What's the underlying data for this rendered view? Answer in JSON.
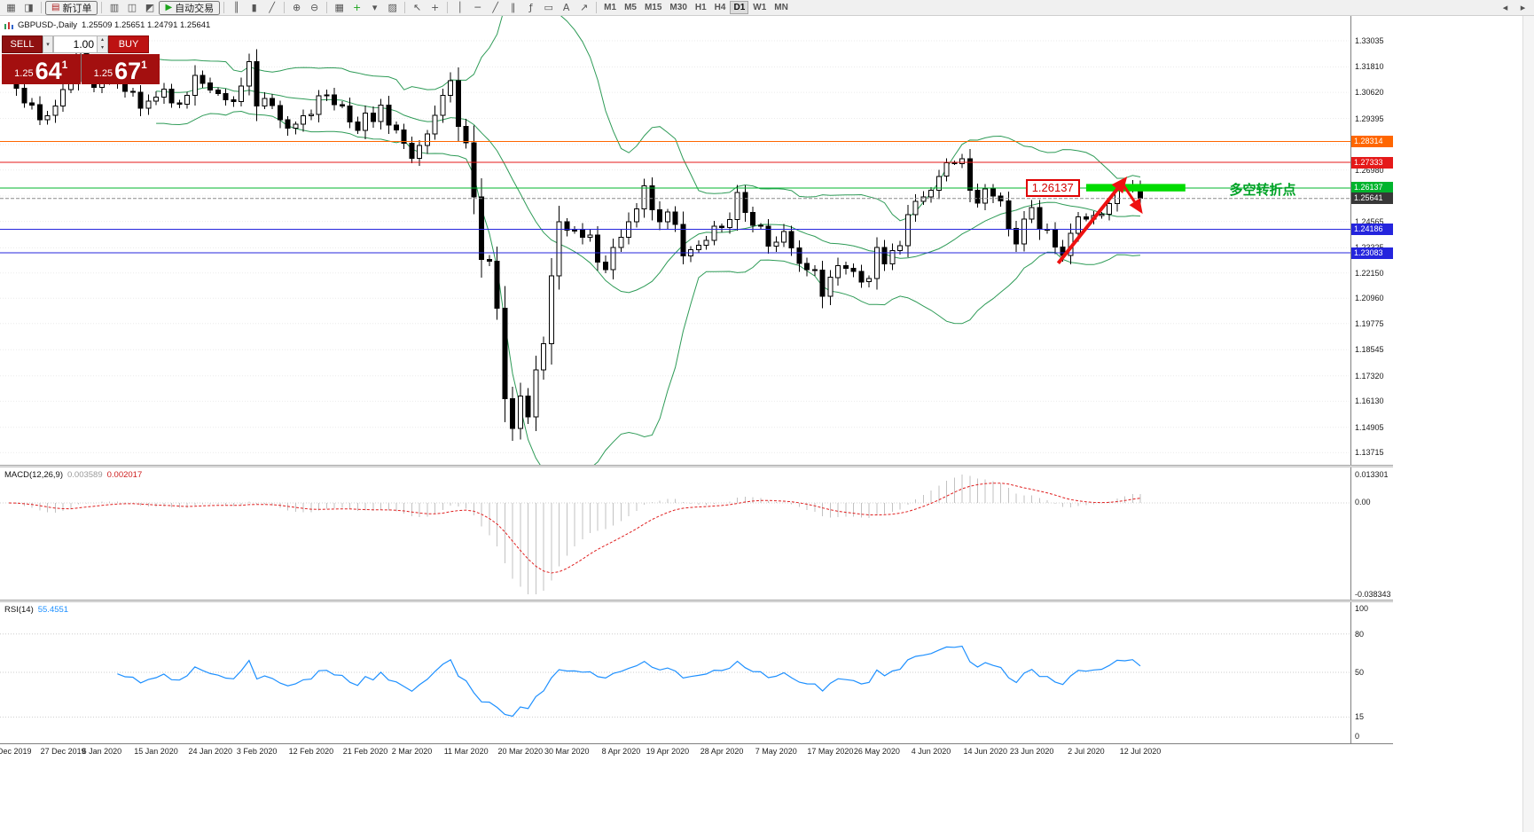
{
  "toolbar": {
    "items": [
      {
        "t": "icon",
        "name": "new-chart-icon",
        "glyph": "▦"
      },
      {
        "t": "icon",
        "name": "chart-profiles-icon",
        "glyph": "◨"
      },
      {
        "t": "sep"
      },
      {
        "t": "btn",
        "name": "new-order-button",
        "glyph": "▤",
        "color": "#b02020",
        "label": "新订单"
      },
      {
        "t": "sep"
      },
      {
        "t": "icon",
        "name": "market-watch-icon",
        "glyph": "▥"
      },
      {
        "t": "icon",
        "name": "data-window-icon",
        "glyph": "◫"
      },
      {
        "t": "icon",
        "name": "terminal-icon",
        "glyph": "◩"
      },
      {
        "t": "btn",
        "name": "auto-trading-button",
        "glyph": "▶",
        "color": "#1ca41c",
        "label": "自动交易"
      },
      {
        "t": "sep"
      },
      {
        "t": "icon",
        "name": "bar-chart-icon",
        "glyph": "║"
      },
      {
        "t": "icon",
        "name": "candlestick-chart-icon",
        "glyph": "▮"
      },
      {
        "t": "icon",
        "name": "line-chart-icon",
        "glyph": "╱"
      },
      {
        "t": "sep"
      },
      {
        "t": "icon",
        "name": "zoom-in-icon",
        "glyph": "⊕"
      },
      {
        "t": "icon",
        "name": "zoom-out-icon",
        "glyph": "⊖"
      },
      {
        "t": "sep"
      },
      {
        "t": "icon",
        "name": "tile-windows-icon",
        "glyph": "▦"
      },
      {
        "t": "icon",
        "name": "indicators-icon",
        "glyph": "+",
        "color": "#1ca41c"
      },
      {
        "t": "icon",
        "name": "periods-icon",
        "glyph": "▾"
      },
      {
        "t": "icon",
        "name": "templates-icon",
        "glyph": "▨"
      },
      {
        "t": "sep"
      },
      {
        "t": "icon",
        "name": "cursor-icon",
        "glyph": "↖"
      },
      {
        "t": "icon",
        "name": "crosshair-icon",
        "glyph": "+"
      },
      {
        "t": "sep"
      },
      {
        "t": "icon",
        "name": "vertical-line-icon",
        "glyph": "│"
      },
      {
        "t": "icon",
        "name": "horizontal-line-icon",
        "glyph": "─"
      },
      {
        "t": "icon",
        "name": "trendline-icon",
        "glyph": "╱"
      },
      {
        "t": "icon",
        "name": "equidistant-channel-icon",
        "glyph": "∥"
      },
      {
        "t": "icon",
        "name": "fibonacci-icon",
        "glyph": "ƒ"
      },
      {
        "t": "icon",
        "name": "shapes-icon",
        "glyph": "▭"
      },
      {
        "t": "icon",
        "name": "text-label-icon",
        "glyph": "A"
      },
      {
        "t": "icon",
        "name": "arrow-objects-icon",
        "glyph": "↗"
      },
      {
        "t": "sep"
      },
      {
        "t": "tf",
        "label": "M1"
      },
      {
        "t": "tf",
        "label": "M5"
      },
      {
        "t": "tf",
        "label": "M15"
      },
      {
        "t": "tf",
        "label": "M30"
      },
      {
        "t": "tf",
        "label": "H1"
      },
      {
        "t": "tf",
        "label": "H4"
      },
      {
        "t": "tf",
        "label": "D1",
        "active": true
      },
      {
        "t": "tf",
        "label": "W1"
      },
      {
        "t": "tf",
        "label": "MN"
      }
    ],
    "right_items": [
      {
        "name": "scroll-left-icon",
        "glyph": "◂"
      },
      {
        "name": "scroll-right-icon",
        "glyph": "▸"
      }
    ]
  },
  "glyphs": {
    "caret_down": "▾",
    "caret_up": "▴"
  },
  "one_click": {
    "sell_label": "SELL",
    "buy_label": "BUY",
    "volume": "1.00",
    "bid_small": "1.25",
    "bid_big": "64",
    "bid_sup": "1",
    "ask_small": "1.25",
    "ask_big": "67",
    "ask_sup": "1"
  },
  "chart": {
    "symbol_label": "GBPUSD-,Daily",
    "ohlc_text": "1.25509 1.25651 1.24791 1.25641"
  },
  "macd": {
    "name": "MACD(12,26,9)",
    "value_main": "0.003589",
    "value_signal": "0.002017",
    "axis_labels": [
      "0.013301",
      "0.00",
      "-0.038343"
    ]
  },
  "rsi": {
    "name": "RSI(14)",
    "value": "55.4551",
    "axis_ticks": [
      100,
      80,
      50,
      15,
      0
    ],
    "levels": [
      80,
      50,
      15
    ]
  },
  "annotations": {
    "price_label": {
      "text": "1.26137",
      "x_idx": 131.2,
      "price": 1.2613
    },
    "note": {
      "text": "多空转折点",
      "x_idx": 157.5,
      "price": 1.2613,
      "color": "#00a226"
    },
    "zone": {
      "from_idx": 139,
      "to_idx": 151.8,
      "top_price": 1.2632,
      "bottom_price": 1.2597,
      "color": "#00dc00"
    },
    "arrows": [
      {
        "from_idx": 135.4,
        "from_price": 1.226,
        "to_idx": 144.3,
        "to_price": 1.2667,
        "width": 4
      },
      {
        "from_idx": 143.6,
        "from_price": 1.2638,
        "to_idx": 146.3,
        "to_price": 1.2492,
        "width": 3
      }
    ],
    "arrow_color": "#ee1111"
  },
  "chart_data": {
    "type": "candlestick",
    "symbol": "GBPUSD",
    "timeframe": "Daily",
    "ylim": [
      1.1315,
      1.342
    ],
    "first_open": 1.319,
    "closes": [
      1.3125,
      1.308,
      1.3012,
      1.3003,
      1.2934,
      1.2953,
      1.2998,
      1.3075,
      1.3113,
      1.3257,
      1.3142,
      1.3085,
      1.3167,
      1.3123,
      1.3105,
      1.3067,
      1.3062,
      1.2987,
      1.3021,
      1.304,
      1.3076,
      1.3012,
      1.3007,
      1.3047,
      1.3141,
      1.3105,
      1.3073,
      1.3056,
      1.3026,
      1.3019,
      1.3092,
      1.3205,
      1.2997,
      1.3033,
      1.2999,
      1.2934,
      1.2893,
      1.2913,
      1.2952,
      1.2959,
      1.3046,
      1.305,
      1.3003,
      1.2998,
      1.2922,
      1.2883,
      1.2964,
      1.2925,
      1.3001,
      1.2909,
      1.2885,
      1.2823,
      1.2752,
      1.2812,
      1.2866,
      1.2954,
      1.3047,
      1.3116,
      1.2903,
      1.2825,
      1.2571,
      1.2278,
      1.2269,
      1.2049,
      1.1625,
      1.1485,
      1.1638,
      1.154,
      1.176,
      1.1882,
      1.2201,
      1.2454,
      1.2415,
      1.2416,
      1.2382,
      1.2392,
      1.2266,
      1.223,
      1.2335,
      1.2382,
      1.2455,
      1.2515,
      1.2623,
      1.2512,
      1.2456,
      1.25,
      1.2442,
      1.2295,
      1.2323,
      1.2344,
      1.2367,
      1.2434,
      1.2428,
      1.2466,
      1.2593,
      1.2499,
      1.2438,
      1.2434,
      1.234,
      1.236,
      1.241,
      1.2333,
      1.2259,
      1.223,
      1.2229,
      1.2105,
      1.2194,
      1.225,
      1.2237,
      1.2222,
      1.2173,
      1.2189,
      1.2335,
      1.2258,
      1.232,
      1.2343,
      1.2489,
      1.2551,
      1.2572,
      1.2602,
      1.2668,
      1.2731,
      1.2728,
      1.2751,
      1.2603,
      1.2542,
      1.2608,
      1.2575,
      1.2552,
      1.2423,
      1.2351,
      1.2468,
      1.2522,
      1.242,
      1.242,
      1.2337,
      1.2297,
      1.24,
      1.2477,
      1.2467,
      1.2483,
      1.2491,
      1.254,
      1.2612,
      1.2607,
      1.2622,
      1.25641
    ],
    "date_ticks": [
      {
        "label": "15 Dec 2019",
        "idx": 0
      },
      {
        "label": "27 Dec 2019",
        "idx": 7
      },
      {
        "label": "6 Jan 2020",
        "idx": 12
      },
      {
        "label": "15 Jan 2020",
        "idx": 19
      },
      {
        "label": "24 Jan 2020",
        "idx": 26
      },
      {
        "label": "3 Feb 2020",
        "idx": 32
      },
      {
        "label": "12 Feb 2020",
        "idx": 39
      },
      {
        "label": "21 Feb 2020",
        "idx": 46
      },
      {
        "label": "2 Mar 2020",
        "idx": 52
      },
      {
        "label": "11 Mar 2020",
        "idx": 59
      },
      {
        "label": "20 Mar 2020",
        "idx": 66
      },
      {
        "label": "30 Mar 2020",
        "idx": 72
      },
      {
        "label": "8 Apr 2020",
        "idx": 79
      },
      {
        "label": "19 Apr 2020",
        "idx": 85
      },
      {
        "label": "28 Apr 2020",
        "idx": 92
      },
      {
        "label": "7 May 2020",
        "idx": 99
      },
      {
        "label": "17 May 2020",
        "idx": 106
      },
      {
        "label": "26 May 2020",
        "idx": 112
      },
      {
        "label": "4 Jun 2020",
        "idx": 119
      },
      {
        "label": "14 Jun 2020",
        "idx": 126
      },
      {
        "label": "23 Jun 2020",
        "idx": 132
      },
      {
        "label": "2 Jul 2020",
        "idx": 139
      },
      {
        "label": "12 Jul 2020",
        "idx": 146
      }
    ],
    "price_axis_ticks": [
      1.33035,
      1.3181,
      1.3062,
      1.29395,
      1.2817,
      1.2698,
      1.25755,
      1.24565,
      1.23325,
      1.2215,
      1.2096,
      1.19775,
      1.18545,
      1.1732,
      1.1613,
      1.14905,
      1.13715
    ],
    "horizontal_lines": [
      {
        "price": 1.28314,
        "color": "#ff6600"
      },
      {
        "price": 1.27333,
        "color": "#e51919"
      },
      {
        "price": 1.26137,
        "color": "#00b42d"
      },
      {
        "price": 1.24186,
        "color": "#2525dd"
      },
      {
        "price": 1.23083,
        "color": "#2525dd"
      }
    ],
    "current_price": {
      "price": 1.25641,
      "color": "#383838"
    },
    "indicators": {
      "bollinger": {
        "period": 20,
        "deviation": 2,
        "color": "#2e9b57"
      },
      "macd": {
        "fast": 12,
        "slow": 26,
        "signal": 9,
        "histogram_color": "#c2c2c2",
        "signal_color": "#e02020"
      },
      "rsi": {
        "period": 14,
        "color": "#1e90ff"
      }
    }
  }
}
